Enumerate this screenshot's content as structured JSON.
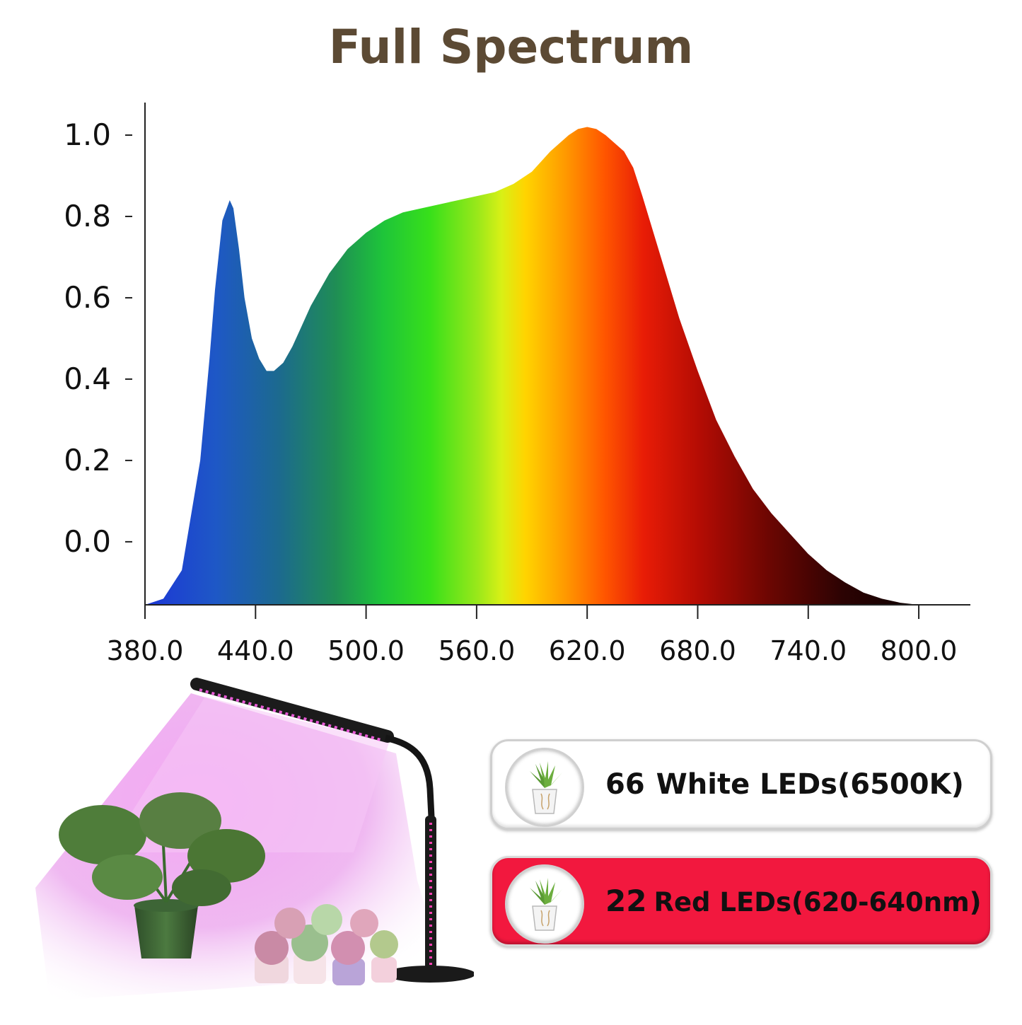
{
  "title": "Full Spectrum",
  "chart_data": {
    "type": "area",
    "x_tick_labels": [
      "380.0",
      "440.0",
      "500.0",
      "560.0",
      "620.0",
      "680.0",
      "740.0",
      "800.0"
    ],
    "y_tick_labels": [
      "0.0",
      "0.2",
      "0.4",
      "0.6",
      "0.8",
      "1.0"
    ],
    "xlim": [
      380,
      828
    ],
    "ylim": [
      -0.155,
      1.08
    ],
    "fill": "visible-spectrum gradient (blue to green to yellow to red to black)",
    "series": [
      {
        "x": [
          380,
          390,
          400,
          410,
          415,
          418,
          422,
          426,
          428,
          431,
          434,
          438,
          442,
          446,
          450,
          455,
          460,
          465,
          470,
          480,
          490,
          500,
          510,
          520,
          530,
          540,
          550,
          560,
          570,
          580,
          590,
          600,
          610,
          615,
          620,
          625,
          630,
          640,
          645,
          650,
          660,
          670,
          680,
          690,
          700,
          710,
          720,
          730,
          740,
          750,
          760,
          770,
          780,
          790,
          800
        ],
        "y": [
          -0.155,
          -0.14,
          -0.07,
          0.2,
          0.45,
          0.62,
          0.79,
          0.84,
          0.82,
          0.72,
          0.6,
          0.5,
          0.45,
          0.42,
          0.42,
          0.44,
          0.48,
          0.53,
          0.58,
          0.66,
          0.72,
          0.76,
          0.79,
          0.81,
          0.82,
          0.83,
          0.84,
          0.85,
          0.86,
          0.88,
          0.91,
          0.96,
          1.0,
          1.015,
          1.02,
          1.015,
          1.0,
          0.96,
          0.92,
          0.85,
          0.7,
          0.55,
          0.42,
          0.3,
          0.21,
          0.13,
          0.07,
          0.02,
          -0.03,
          -0.07,
          -0.1,
          -0.125,
          -0.14,
          -0.15,
          -0.155
        ]
      }
    ]
  },
  "led_cards": [
    {
      "count": "66",
      "text": "White LEDs(6500K)",
      "bg_color": "#ffffff"
    },
    {
      "count": "22",
      "text": "Red LEDs(620-640nm)",
      "bg_color": "#f2183e"
    }
  ]
}
